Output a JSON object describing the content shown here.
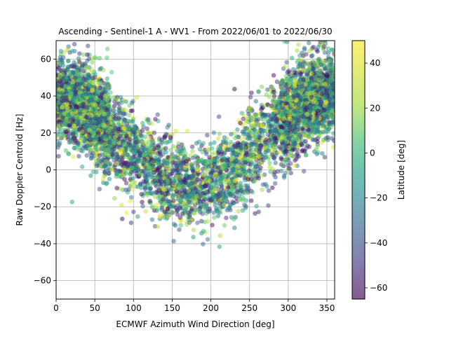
{
  "chart_data": {
    "type": "scatter",
    "title": "Ascending - Sentinel-1 A - WV1 - From 2022/06/01 to 2022/06/30",
    "xlabel": "ECMWF Azimuth Wind Direction [deg]",
    "ylabel": "Raw Doppler Centroid [Hz]",
    "xlim": [
      0,
      360
    ],
    "ylim": [
      -70,
      70
    ],
    "xticks": [
      0,
      50,
      100,
      150,
      200,
      250,
      300,
      350
    ],
    "yticks": [
      -60,
      -40,
      -20,
      0,
      20,
      40,
      60
    ],
    "grid": true,
    "colormap": "viridis",
    "colorbar": {
      "label": "Latitude [deg]",
      "range": [
        -65,
        50
      ],
      "ticks": [
        -60,
        -40,
        -20,
        0,
        20,
        40
      ]
    },
    "marker_alpha": 0.5,
    "point_count_estimate": 6000,
    "trend": {
      "description": "V-shaped cloud: Doppler high near 0 and 360 deg, minimum near 180 deg",
      "x": [
        0,
        45,
        90,
        135,
        180,
        225,
        270,
        315,
        360
      ],
      "y_center": [
        40,
        32,
        12,
        -3,
        -10,
        -2,
        18,
        35,
        42
      ],
      "y_spread": [
        14,
        16,
        16,
        15,
        14,
        15,
        17,
        16,
        14
      ]
    }
  }
}
